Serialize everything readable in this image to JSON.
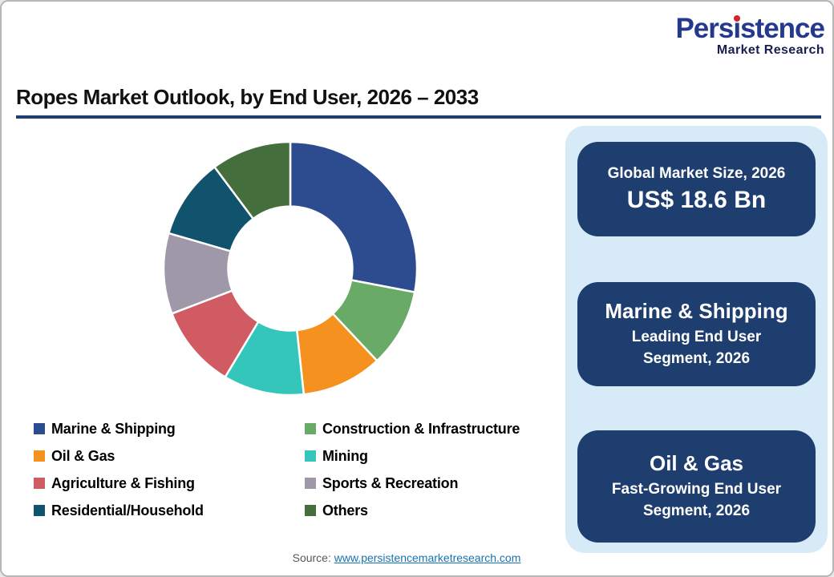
{
  "logo": {
    "brand": "Persistence",
    "subtitle": "Market Research"
  },
  "title": "Ropes Market Outlook, by End User, 2026 – 2033",
  "chart_data": {
    "type": "pie",
    "variant": "donut",
    "title": "Ropes Market Outlook, by End User, 2026 – 2033",
    "categories": [
      "Marine & Shipping",
      "Construction & Infrastructure",
      "Oil & Gas",
      "Mining",
      "Agriculture & Fishing",
      "Sports & Recreation",
      "Residential/Household",
      "Others"
    ],
    "values": [
      28.0,
      10.0,
      10.3,
      10.3,
      10.6,
      10.3,
      10.3,
      10.2
    ],
    "values_note": "percent share estimated from arc angles; no numeric labels shown in chart",
    "colors": [
      "#2C4C8F",
      "#6AAA67",
      "#F5921F",
      "#34C5BB",
      "#D15B63",
      "#9E98A9",
      "#11536C",
      "#446F3C"
    ],
    "start_angle": 0,
    "donut_hole_ratio": 0.49,
    "legend_position": "bottom-left, two columns"
  },
  "legend": {
    "columns": [
      [
        0,
        2,
        4,
        6
      ],
      [
        1,
        3,
        5,
        7
      ]
    ]
  },
  "panel": {
    "card1": {
      "title": "Global Market Size, 2026",
      "value": "US$ 18.6 Bn"
    },
    "card2": {
      "title": "Marine & Shipping",
      "line1": "Leading End User",
      "line2": "Segment, 2026"
    },
    "card3": {
      "title": "Oil & Gas",
      "line1": "Fast-Growing End User",
      "line2": "Segment, 2026"
    }
  },
  "source": {
    "prefix": "Source:",
    "link_text": "www.persistencemarketresearch.com"
  },
  "colors": {
    "card_navy": "#1F3E70",
    "panel_light_blue": "#D7EAF7",
    "title_rule_navy": "#1F3E6E",
    "logo_blue": "#24388E",
    "logo_dark_navy": "#191D52",
    "logo_dot_red": "#D5232E",
    "link_blue": "#1673B1",
    "source_gray": "#595959"
  }
}
